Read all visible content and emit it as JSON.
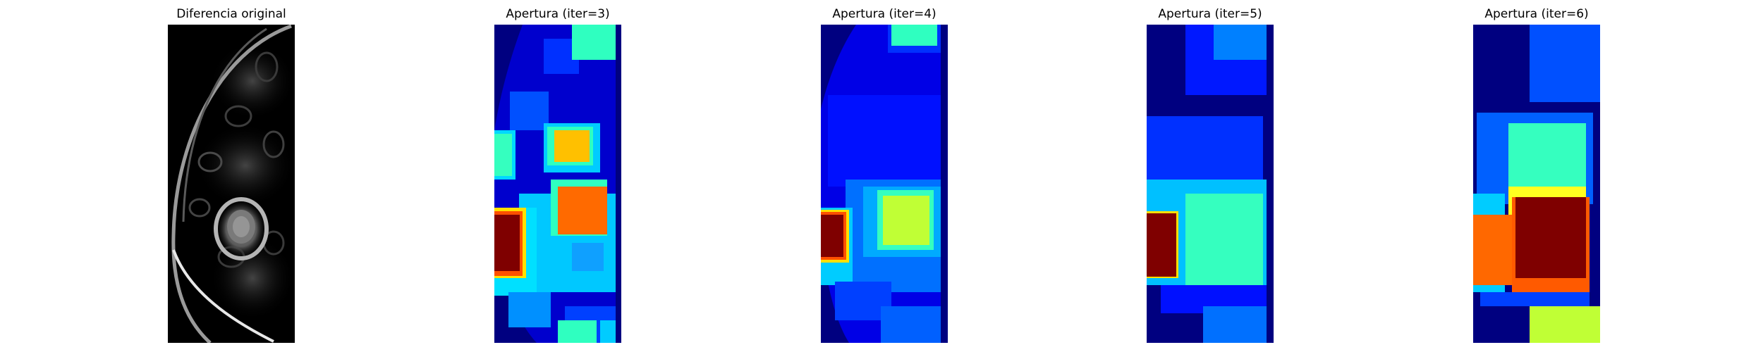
{
  "panels": [
    {
      "title": "Diferencia original"
    },
    {
      "title": "Apertura (iter=3)"
    },
    {
      "title": "Apertura (iter=4)"
    },
    {
      "title": "Apertura (iter=5)"
    },
    {
      "title": "Apertura (iter=6)"
    }
  ]
}
